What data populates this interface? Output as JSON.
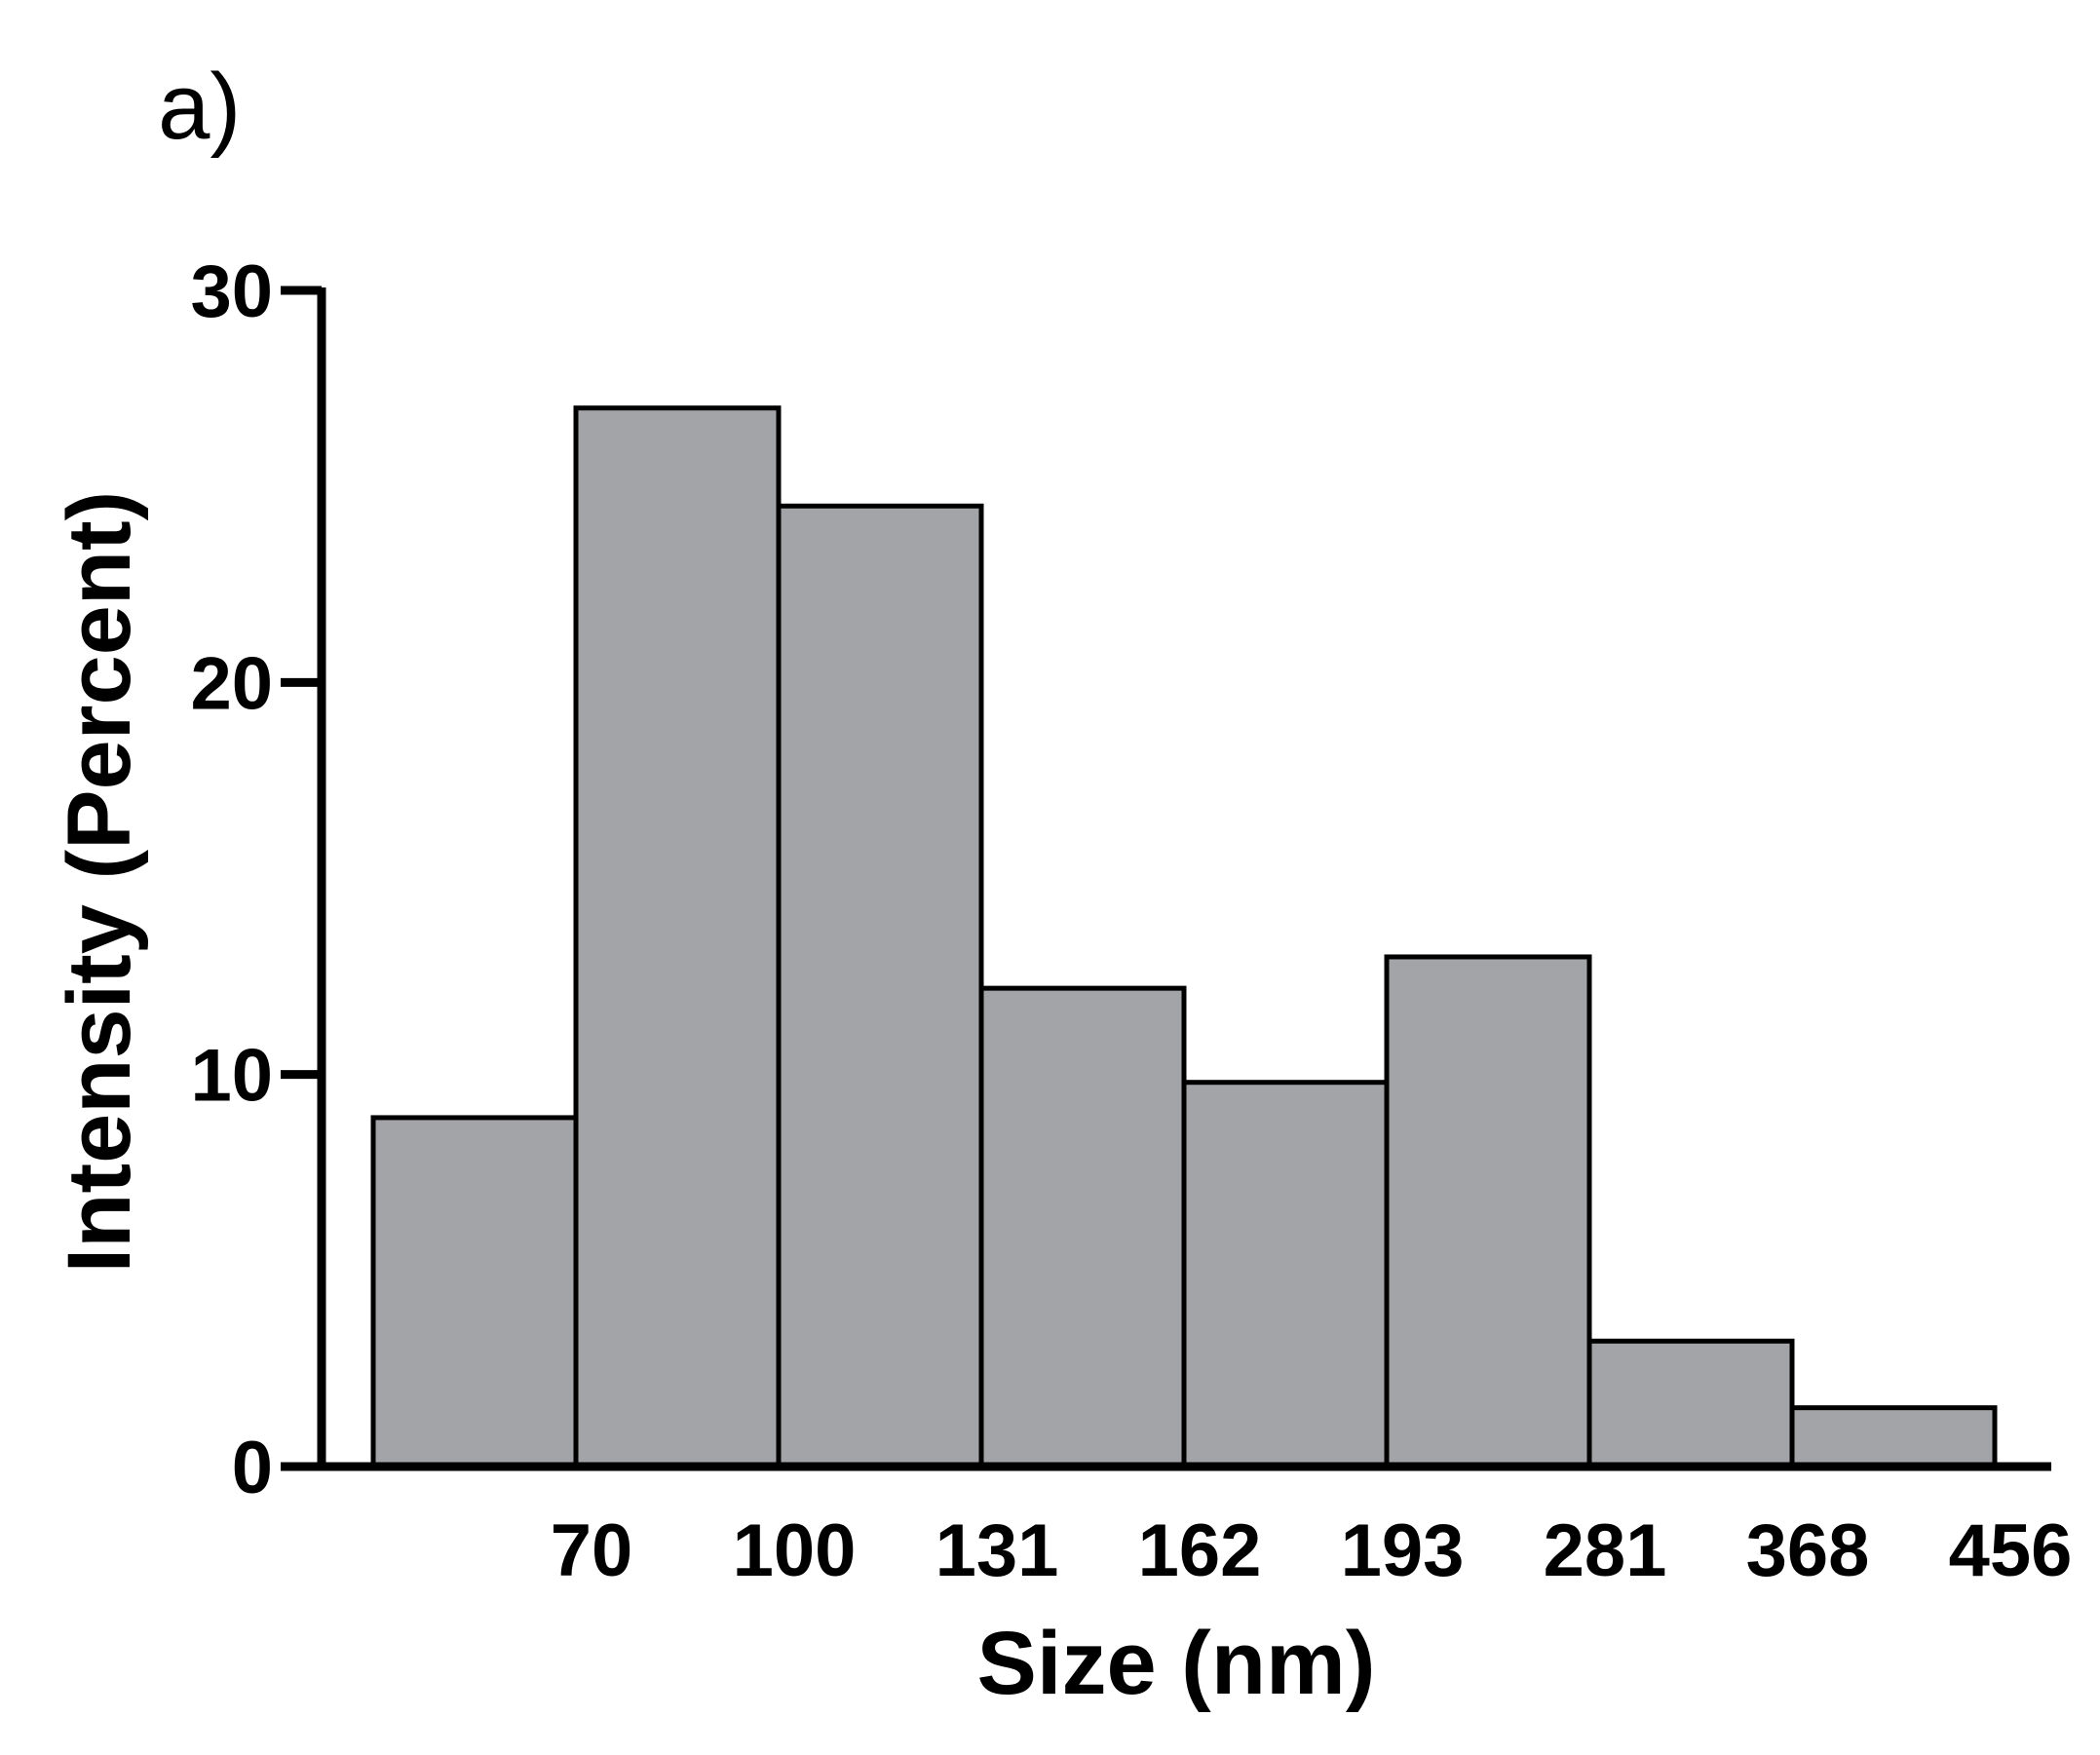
{
  "chart_data": {
    "type": "bar",
    "panel_label": "a)",
    "title": "",
    "xlabel": "Size (nm)",
    "ylabel": "Intensity (Percent)",
    "ylim": [
      0,
      30
    ],
    "yticks": [
      "0",
      "10",
      "20",
      "30"
    ],
    "x_edge_labels": [
      "70",
      "100",
      "131",
      "162",
      "193",
      "281",
      "368",
      "456"
    ],
    "values": [
      8.9,
      27.0,
      24.5,
      12.2,
      9.8,
      13.0,
      3.2,
      1.5
    ],
    "bar_color": "#a3a4a8",
    "edge_color": "#000000",
    "grid": false,
    "legend": "none"
  }
}
